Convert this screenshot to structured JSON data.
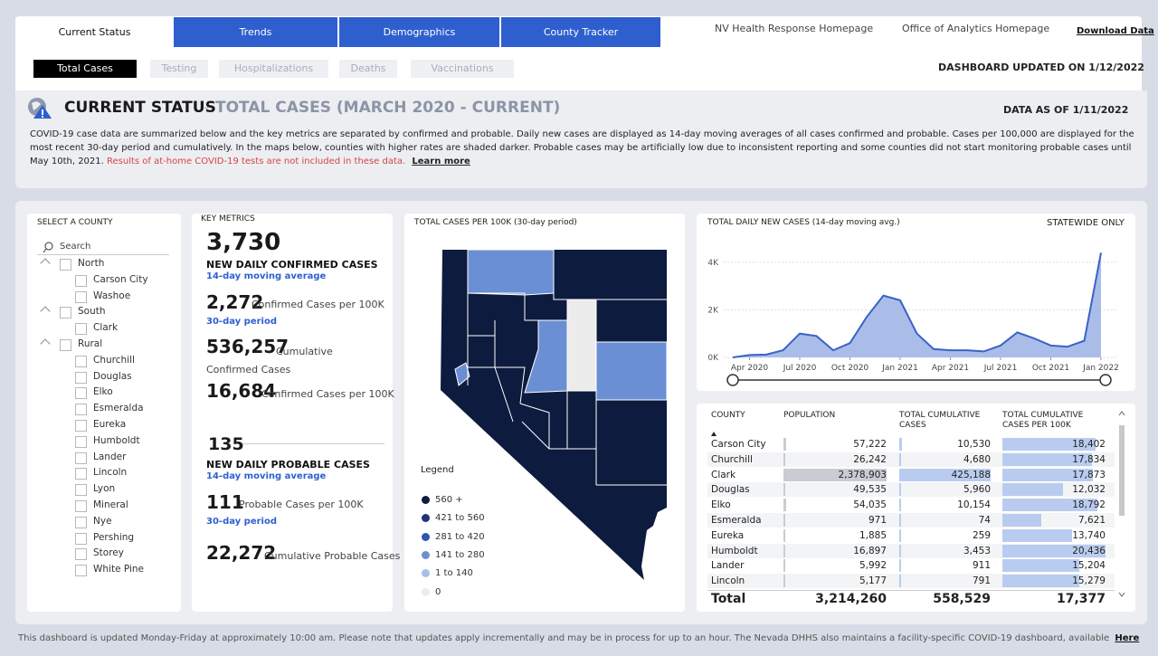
{
  "tabs": [
    "Current Status",
    "Trends",
    "Demographics",
    "County Tracker"
  ],
  "links": [
    "NV Health Response Homepage",
    "Office of Analytics Homepage",
    "Download Data"
  ],
  "subtabs": [
    "Total Cases",
    "Testing",
    "Hospitalizations",
    "Deaths",
    "Vaccinations"
  ],
  "dashboard_updated": "DASHBOARD UPDATED ON 1/12/2022",
  "header": {
    "title": "CURRENT STATUS",
    "separator": "-",
    "subtitle": "TOTAL CASES (MARCH 2020 - CURRENT)",
    "data_as_of": "DATA AS OF 1/11/2022",
    "description": "COVID-19 case data are summarized below and the key metrics are separated by confirmed and probable. Daily new cases are displayed as 14-day moving averages of all cases confirmed and probable. Cases per 100,000 are displayed for the most recent 30-day period and cumulatively. In the maps below, counties with higher rates are shaded darker. Probable cases may be artificially low due to inconsistent reporting and some counties did not start monitoring probable cases until May 10th, 2021.",
    "warning": "Results of at-home COVID-19 tests are not included in these data.",
    "learn_more": "Learn more"
  },
  "county_selector": {
    "title": "SELECT A COUNTY",
    "search": "Search",
    "groups": [
      {
        "name": "North",
        "counties": [
          "Carson City",
          "Washoe"
        ]
      },
      {
        "name": "South",
        "counties": [
          "Clark"
        ]
      },
      {
        "name": "Rural",
        "counties": [
          "Churchill",
          "Douglas",
          "Elko",
          "Esmeralda",
          "Eureka",
          "Humboldt",
          "Lander",
          "Lincoln",
          "Lyon",
          "Mineral",
          "Nye",
          "Pershing",
          "Storey",
          "White Pine"
        ]
      }
    ]
  },
  "key_metrics": {
    "title": "KEY METRICS",
    "confirmed_daily": {
      "value": "3,730",
      "label": "NEW DAILY CONFIRMED CASES",
      "note": "14-day moving average"
    },
    "confirmed_per100k_30d": {
      "value": "2,272",
      "label": "Confirmed Cases per 100K",
      "note": "30-day period"
    },
    "confirmed_cumulative": {
      "value": "536,257",
      "label": "Cumulative Confirmed Cases"
    },
    "confirmed_cumulative_per100k": {
      "value": "16,684",
      "label": "Confirmed Cases per 100K"
    },
    "probable_daily": {
      "value": "135",
      "label": "NEW DAILY PROBABLE CASES",
      "note": "14-day moving average"
    },
    "probable_per100k_30d": {
      "value": "111",
      "label": "Probable Cases per 100K",
      "note": "30-day period"
    },
    "probable_cumulative": {
      "value": "22,272",
      "label": "Cumulative Probable Cases"
    }
  },
  "map": {
    "title": "TOTAL CASES PER 100K (30-day period)",
    "legend_title": "Legend",
    "legend": [
      {
        "label": "560 +",
        "color": "#0d1b3e"
      },
      {
        "label": "421 to 560",
        "color": "#1d3576"
      },
      {
        "label": "281 to 420",
        "color": "#2e56b0"
      },
      {
        "label": "141 to 280",
        "color": "#6b8fd4"
      },
      {
        "label": "1 to 140",
        "color": "#a9bfe8"
      },
      {
        "label": "0",
        "color": "#ececec"
      }
    ]
  },
  "chart_data": {
    "type": "area",
    "title": "TOTAL DAILY NEW CASES (14-day moving avg.)",
    "subtitle": "STATEWIDE ONLY",
    "x": [
      "2020-03",
      "2020-04",
      "2020-05",
      "2020-06",
      "2020-07",
      "2020-08",
      "2020-09",
      "2020-10",
      "2020-11",
      "2020-12",
      "2021-01",
      "2021-02",
      "2021-03",
      "2021-04",
      "2021-05",
      "2021-06",
      "2021-07",
      "2021-08",
      "2021-09",
      "2021-10",
      "2021-11",
      "2021-12",
      "2022-01"
    ],
    "values": [
      0,
      100,
      120,
      300,
      1000,
      900,
      300,
      600,
      1700,
      2600,
      2400,
      1000,
      350,
      300,
      300,
      250,
      500,
      1050,
      800,
      500,
      450,
      700,
      4400
    ],
    "color": "#3a62c8",
    "fill": "#a9bde8",
    "ylim": [
      0,
      5000
    ],
    "yticks": [
      {
        "value": 0,
        "label": "0K"
      },
      {
        "value": 2000,
        "label": "2K"
      },
      {
        "value": 4000,
        "label": "4K"
      }
    ],
    "xticks": [
      {
        "value": "2020-04",
        "label": "Apr 2020"
      },
      {
        "value": "2020-07",
        "label": "Jul 2020"
      },
      {
        "value": "2020-10",
        "label": "Oct 2020"
      },
      {
        "value": "2021-01",
        "label": "Jan 2021"
      },
      {
        "value": "2021-04",
        "label": "Apr 2021"
      },
      {
        "value": "2021-07",
        "label": "Jul 2021"
      },
      {
        "value": "2021-10",
        "label": "Oct 2021"
      },
      {
        "value": "2022-01",
        "label": "Jan 2022"
      }
    ],
    "grid": true
  },
  "table": {
    "columns": [
      "COUNTY",
      "POPULATION",
      "TOTAL CUMULATIVE CASES",
      "TOTAL CUMULATIVE CASES PER 100K"
    ],
    "bar_color": "#b9ccf0",
    "rows": [
      [
        "Carson City",
        {
          "value": 57222,
          "label": "57,222"
        },
        {
          "value": 10530,
          "label": "10,530"
        },
        {
          "value": 18402,
          "label": "18,402"
        }
      ],
      [
        "Churchill",
        {
          "value": 26242,
          "label": "26,242"
        },
        {
          "value": 4680,
          "label": "4,680"
        },
        {
          "value": 17834,
          "label": "17,834"
        }
      ],
      [
        "Clark",
        {
          "value": 2378903,
          "label": "2,378,903"
        },
        {
          "value": 425188,
          "label": "425,188"
        },
        {
          "value": 17873,
          "label": "17,873"
        }
      ],
      [
        "Douglas",
        {
          "value": 49535,
          "label": "49,535"
        },
        {
          "value": 5960,
          "label": "5,960"
        },
        {
          "value": 12032,
          "label": "12,032"
        }
      ],
      [
        "Elko",
        {
          "value": 54035,
          "label": "54,035"
        },
        {
          "value": 10154,
          "label": "10,154"
        },
        {
          "value": 18792,
          "label": "18,792"
        }
      ],
      [
        "Esmeralda",
        {
          "value": 971,
          "label": "971"
        },
        {
          "value": 74,
          "label": "74"
        },
        {
          "value": 7621,
          "label": "7,621"
        }
      ],
      [
        "Eureka",
        {
          "value": 1885,
          "label": "1,885"
        },
        {
          "value": 259,
          "label": "259"
        },
        {
          "value": 13740,
          "label": "13,740"
        }
      ],
      [
        "Humboldt",
        {
          "value": 16897,
          "label": "16,897"
        },
        {
          "value": 3453,
          "label": "3,453"
        },
        {
          "value": 20436,
          "label": "20,436"
        }
      ],
      [
        "Lander",
        {
          "value": 5992,
          "label": "5,992"
        },
        {
          "value": 911,
          "label": "911"
        },
        {
          "value": 15204,
          "label": "15,204"
        }
      ],
      [
        "Lincoln",
        {
          "value": 5177,
          "label": "5,177"
        },
        {
          "value": 791,
          "label": "791"
        },
        {
          "value": 15279,
          "label": "15,279"
        }
      ]
    ],
    "total": [
      "Total",
      "3,214,260",
      "558,529",
      "17,377"
    ]
  },
  "footer": {
    "text": "This dashboard is updated Monday-Friday at approximately 10:00 am. Please note that updates apply incrementally and may be in process for up to an hour.  The Nevada DHHS also maintains a facility-specific COVID-19 dashboard, available",
    "link": "Here"
  }
}
